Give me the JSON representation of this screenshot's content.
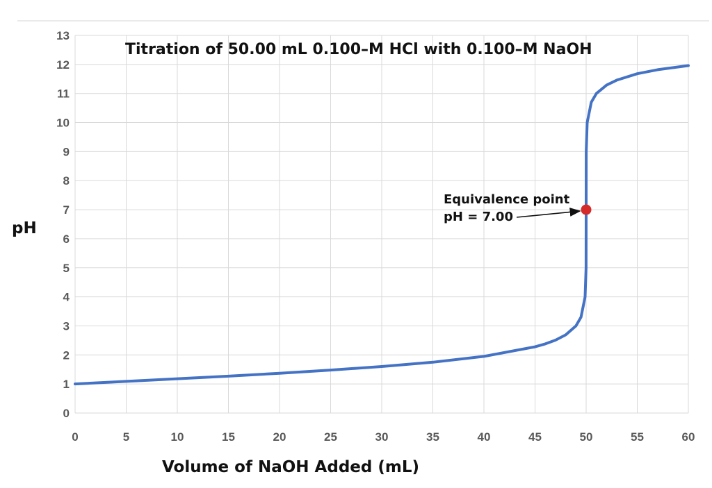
{
  "chart_data": {
    "type": "line",
    "title": "Titration of 50.00 mL 0.100–M HCl with 0.100–M NaOH",
    "xlabel": "Volume of NaOH Added (mL)",
    "ylabel": "pH",
    "xlim": [
      0,
      60
    ],
    "ylim": [
      0,
      13
    ],
    "xticks": [
      0,
      5,
      10,
      15,
      20,
      25,
      30,
      35,
      40,
      45,
      50,
      55,
      60
    ],
    "yticks": [
      0,
      1,
      2,
      3,
      4,
      5,
      6,
      7,
      8,
      9,
      10,
      11,
      12,
      13
    ],
    "grid": true,
    "series_color": "#4472C4",
    "x": [
      0,
      5,
      10,
      15,
      20,
      25,
      30,
      35,
      40,
      45,
      46,
      47,
      48,
      49,
      49.5,
      49.9,
      49.99,
      50,
      50.01,
      50.1,
      50.5,
      51,
      52,
      53,
      55,
      57,
      60
    ],
    "y": [
      1.0,
      1.09,
      1.18,
      1.27,
      1.37,
      1.48,
      1.6,
      1.75,
      1.95,
      2.28,
      2.38,
      2.51,
      2.69,
      3.0,
      3.3,
      4.0,
      5.0,
      7.0,
      9.0,
      10.0,
      10.7,
      11.0,
      11.29,
      11.46,
      11.68,
      11.82,
      11.96
    ],
    "annotation": {
      "line1": "Equivalence point",
      "line2": "pH = 7.00",
      "x": 50,
      "y": 7.0,
      "marker_color": "#D42A2A"
    }
  }
}
